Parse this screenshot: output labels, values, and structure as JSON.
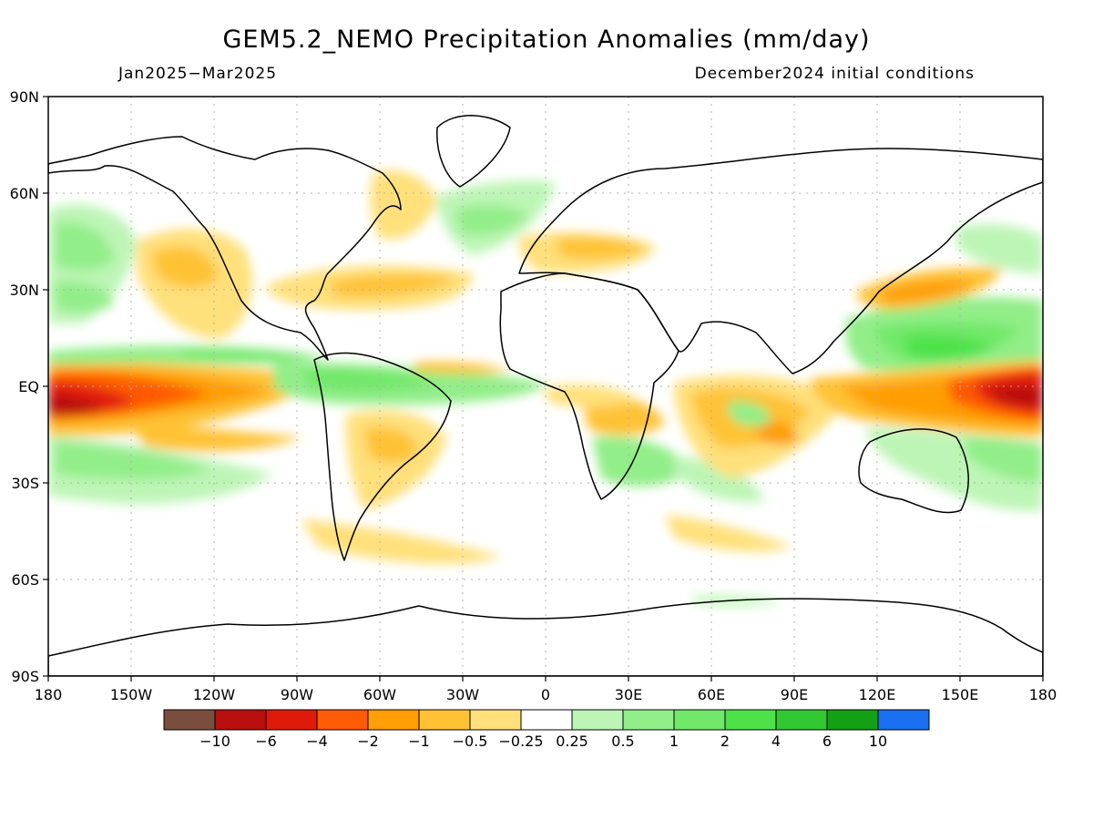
{
  "title": "GEM5.2_NEMO Precipitation Anomalies (mm/day)",
  "period": "Jan2025−Mar2025",
  "initial_conditions": "December2024 initial conditions",
  "map_extent": {
    "lon_min": -180,
    "lon_max": 180,
    "lat_min": -90,
    "lat_max": 90
  },
  "lat_ticks": [
    {
      "value": 90,
      "label": "90N"
    },
    {
      "value": 60,
      "label": "60N"
    },
    {
      "value": 30,
      "label": "30N"
    },
    {
      "value": 0,
      "label": "EQ"
    },
    {
      "value": -30,
      "label": "30S"
    },
    {
      "value": -60,
      "label": "60S"
    },
    {
      "value": -90,
      "label": "90S"
    }
  ],
  "lon_ticks": [
    {
      "value": -180,
      "label": "180"
    },
    {
      "value": -150,
      "label": "150W"
    },
    {
      "value": -120,
      "label": "120W"
    },
    {
      "value": -90,
      "label": "90W"
    },
    {
      "value": -60,
      "label": "60W"
    },
    {
      "value": -30,
      "label": "30W"
    },
    {
      "value": 0,
      "label": "0"
    },
    {
      "value": 30,
      "label": "30E"
    },
    {
      "value": 60,
      "label": "60E"
    },
    {
      "value": 90,
      "label": "90E"
    },
    {
      "value": 120,
      "label": "120E"
    },
    {
      "value": 150,
      "label": "150E"
    },
    {
      "value": 180,
      "label": "180"
    }
  ],
  "colorbar": {
    "colors": [
      "#7a4e3e",
      "#b80e0e",
      "#e01a0a",
      "#ff5a05",
      "#ff9e05",
      "#ffc235",
      "#ffe07a",
      "#ffffff",
      "#bdf5b6",
      "#92ee88",
      "#72e86a",
      "#4ee24a",
      "#32c832",
      "#13a014",
      "#1a6ef0"
    ],
    "boundaries": [
      "−10",
      "−6",
      "−4",
      "−2",
      "−1",
      "−0.5",
      "−0.25",
      "0.25",
      "0.5",
      "1",
      "2",
      "4",
      "6",
      "10"
    ]
  },
  "chart_data": {
    "type": "heatmap",
    "variable": "Precipitation anomaly (mm/day)",
    "anomaly_regions": [
      {
        "region": "Central equatorial Pacific",
        "lon": [
          -180,
          -120
        ],
        "lat": [
          -10,
          5
        ],
        "value": -5
      },
      {
        "region": "Eastern equatorial Pacific",
        "lon": [
          -125,
          -80
        ],
        "lat": [
          -12,
          3
        ],
        "value": -2
      },
      {
        "region": "Equatorial Pacific north flank",
        "lon": [
          -175,
          -100
        ],
        "lat": [
          5,
          12
        ],
        "value": 1.5
      },
      {
        "region": "South-central Pacific",
        "lon": [
          -175,
          -120
        ],
        "lat": [
          -25,
          -15
        ],
        "value": 1.5
      },
      {
        "region": "North Pacific subtropics",
        "lon": [
          -150,
          -110
        ],
        "lat": [
          20,
          45
        ],
        "value": -0.7
      },
      {
        "region": "Central North Pacific",
        "lon": [
          -180,
          -150
        ],
        "lat": [
          25,
          50
        ],
        "value": 0.6
      },
      {
        "region": "Gulf of Mexico / Florida / NW Atlantic",
        "lon": [
          -80,
          -35
        ],
        "lat": [
          25,
          38
        ],
        "value": -0.8
      },
      {
        "region": "Equatorial Atlantic",
        "lon": [
          -80,
          -10
        ],
        "lat": [
          -5,
          5
        ],
        "value": 1.5
      },
      {
        "region": "Northern South America",
        "lon": [
          -75,
          -40
        ],
        "lat": [
          -5,
          10
        ],
        "value": 1.5
      },
      {
        "region": "Central / Southern Brazil",
        "lon": [
          -65,
          -35
        ],
        "lat": [
          -30,
          -5
        ],
        "value": -0.7
      },
      {
        "region": "Europe / Mediterranean",
        "lon": [
          -10,
          40
        ],
        "lat": [
          35,
          55
        ],
        "value": -0.7
      },
      {
        "region": "North Atlantic",
        "lon": [
          -30,
          0
        ],
        "lat": [
          40,
          60
        ],
        "value": 0.6
      },
      {
        "region": "Southern Africa",
        "lon": [
          15,
          45
        ],
        "lat": [
          -28,
          -15
        ],
        "value": 0.8
      },
      {
        "region": "Central Africa / East Africa",
        "lon": [
          15,
          40
        ],
        "lat": [
          -12,
          0
        ],
        "value": -0.7
      },
      {
        "region": "Southern Indian Ocean",
        "lon": [
          40,
          100
        ],
        "lat": [
          -25,
          -5
        ],
        "value": -1.2
      },
      {
        "region": "Maritime Continent / Western Pacific",
        "lon": [
          120,
          170
        ],
        "lat": [
          5,
          25
        ],
        "value": 2
      },
      {
        "region": "Western Pacific equatorial",
        "lon": [
          160,
          180
        ],
        "lat": [
          -10,
          2
        ],
        "value": -5
      },
      {
        "region": "Indonesia south",
        "lon": [
          100,
          150
        ],
        "lat": [
          -12,
          -3
        ],
        "value": -2
      },
      {
        "region": "Japan / NW Pacific",
        "lon": [
          130,
          160
        ],
        "lat": [
          28,
          40
        ],
        "value": -1
      },
      {
        "region": "Australia east / SW Pacific",
        "lon": [
          140,
          180
        ],
        "lat": [
          -30,
          -15
        ],
        "value": 1.2
      },
      {
        "region": "Southern Ocean",
        "lon": [
          -60,
          0
        ],
        "lat": [
          -55,
          -40
        ],
        "value": -0.6
      }
    ]
  }
}
